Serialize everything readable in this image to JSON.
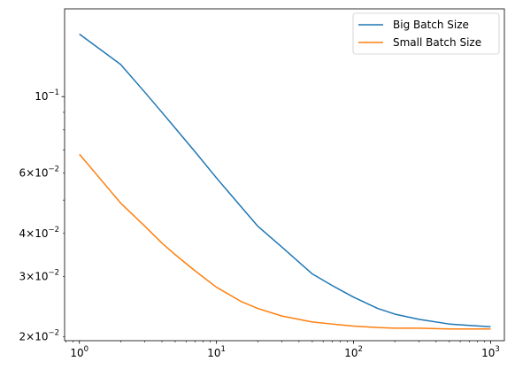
{
  "chart_data": {
    "type": "line",
    "title": "",
    "xlabel": "",
    "ylabel": "",
    "xscale": "log",
    "yscale": "log",
    "xlim": [
      0.78,
      1260
    ],
    "ylim": [
      0.0195,
      0.18
    ],
    "grid": false,
    "legend_position": "top-right",
    "x_tick_labels": [
      {
        "value": 1,
        "base": "10",
        "exp": "0"
      },
      {
        "value": 10,
        "base": "10",
        "exp": "1"
      },
      {
        "value": 100,
        "base": "10",
        "exp": "2"
      },
      {
        "value": 1000,
        "base": "10",
        "exp": "3"
      }
    ],
    "y_tick_labels": [
      {
        "value": 0.02,
        "mant": "2",
        "base": "10",
        "exp": "−2"
      },
      {
        "value": 0.03,
        "mant": "3",
        "base": "10",
        "exp": "−2"
      },
      {
        "value": 0.04,
        "mant": "4",
        "base": "10",
        "exp": "−2"
      },
      {
        "value": 0.06,
        "mant": "6",
        "base": "10",
        "exp": "−2"
      },
      {
        "value": 0.1,
        "mant": "",
        "base": "10",
        "exp": "−1"
      }
    ],
    "series": [
      {
        "name": "Big Batch Size",
        "color": "#1f77b4",
        "x": [
          1,
          2,
          3,
          4,
          5,
          7,
          10,
          15,
          20,
          30,
          50,
          70,
          100,
          150,
          200,
          300,
          500,
          700,
          1000
        ],
        "y": [
          0.152,
          0.124,
          0.103,
          0.09,
          0.081,
          0.069,
          0.058,
          0.048,
          0.042,
          0.0365,
          0.0305,
          0.0282,
          0.0261,
          0.0242,
          0.0233,
          0.0225,
          0.0218,
          0.0216,
          0.0214
        ]
      },
      {
        "name": "Small Batch Size",
        "color": "#ff7f0e",
        "x": [
          1,
          2,
          3,
          4,
          5,
          7,
          10,
          15,
          20,
          30,
          50,
          70,
          100,
          150,
          200,
          300,
          500,
          700,
          1000
        ],
        "y": [
          0.068,
          0.049,
          0.042,
          0.0375,
          0.0347,
          0.0311,
          0.0279,
          0.0254,
          0.0242,
          0.023,
          0.0221,
          0.0218,
          0.0215,
          0.0213,
          0.0212,
          0.0212,
          0.0211,
          0.0211,
          0.0211
        ]
      }
    ]
  }
}
